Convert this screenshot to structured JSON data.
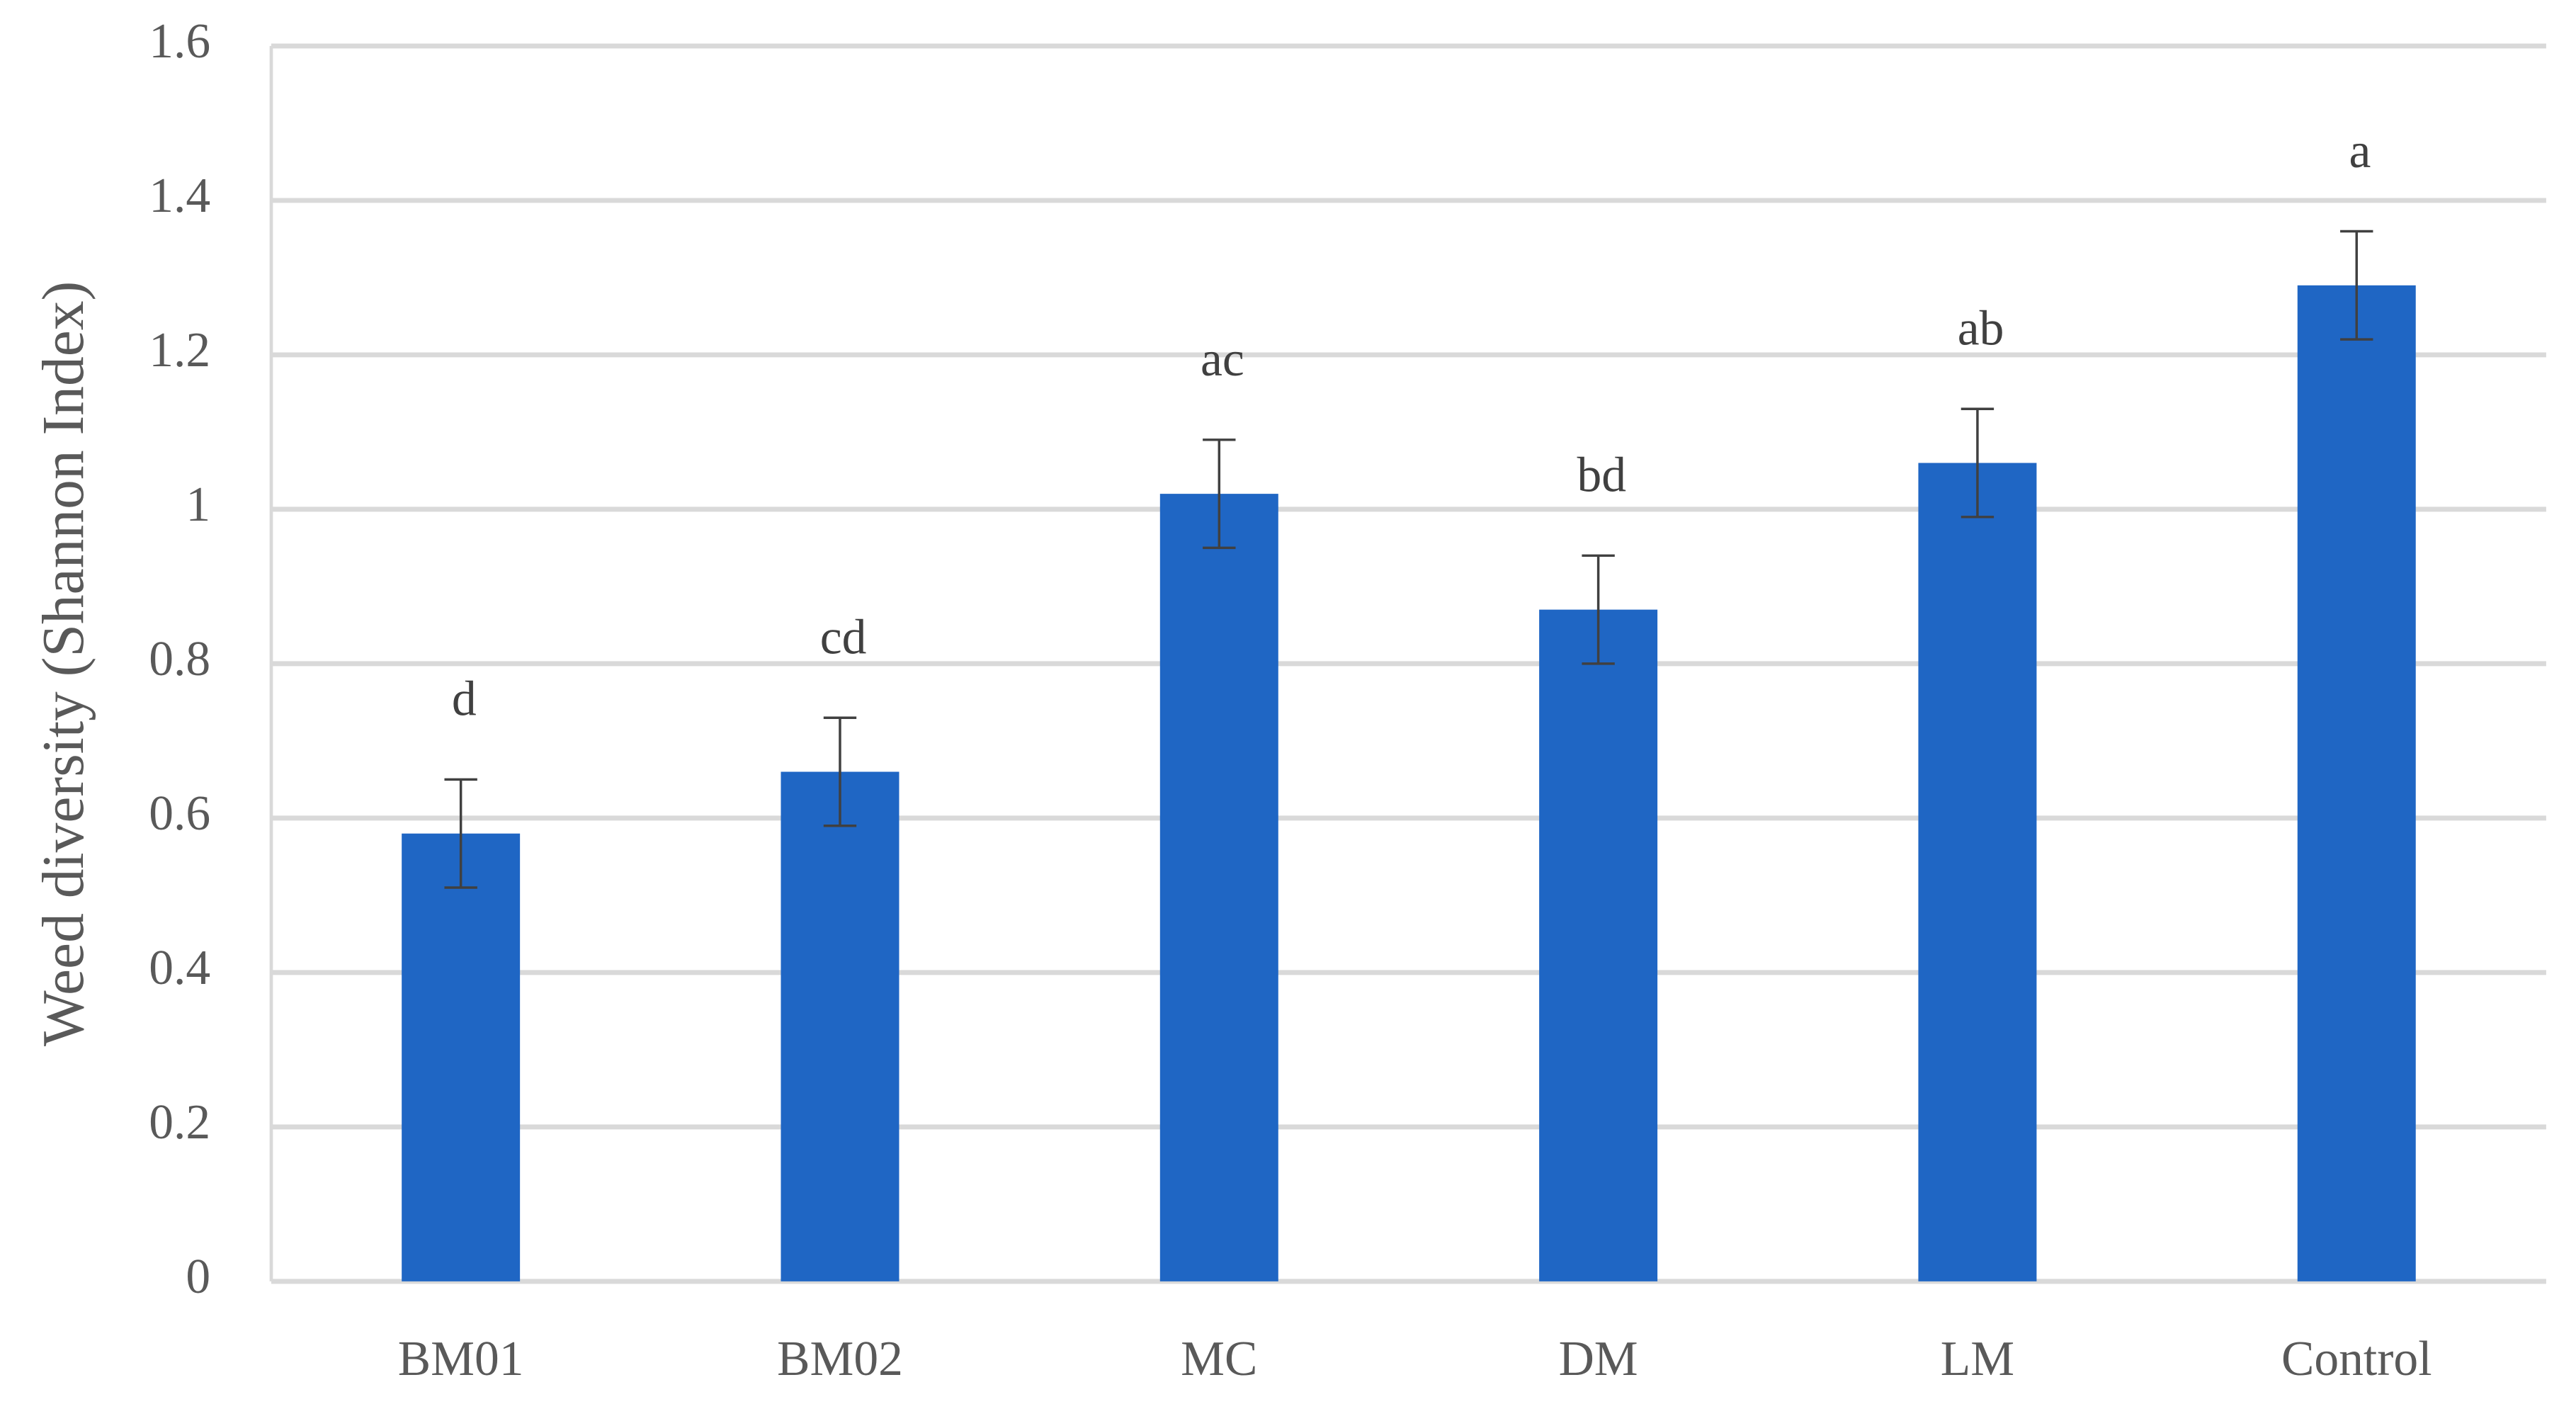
{
  "chart_data": {
    "type": "bar",
    "y_label": "Weed diversity  (Shannon  Index)",
    "categories": [
      "BM01",
      "BM02",
      "MC",
      "DM",
      "LM",
      "Control"
    ],
    "values": [
      0.58,
      0.66,
      1.02,
      0.87,
      1.06,
      1.29
    ],
    "errors": [
      0.07,
      0.07,
      0.07,
      0.07,
      0.07,
      0.07
    ],
    "letters": [
      "d",
      "cd",
      "ac",
      "bd",
      "ab",
      "a"
    ],
    "color": "#1f66c4",
    "ylim": [
      0,
      1.6
    ],
    "yticks": [
      0,
      0.2,
      0.4,
      0.6,
      0.8,
      1,
      1.2,
      1.4,
      1.6
    ],
    "grid": true
  }
}
